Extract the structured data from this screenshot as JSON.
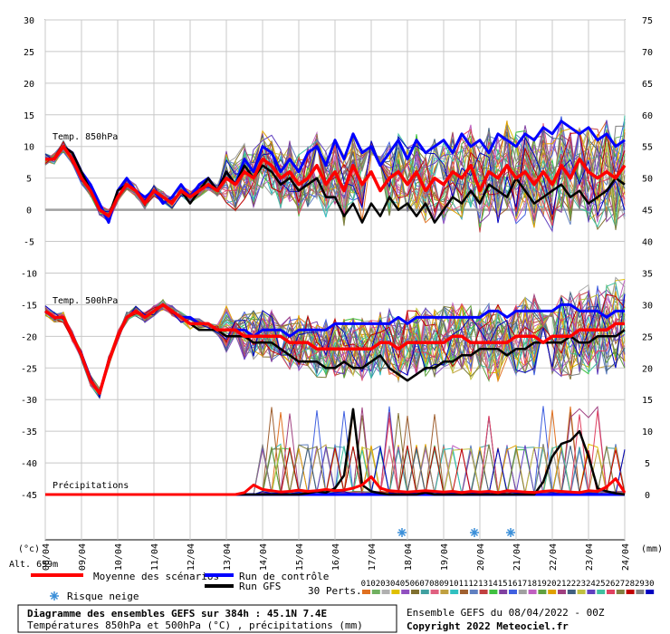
{
  "chart_data": {
    "type": "line",
    "ylim_left": [
      -45,
      30
    ],
    "ylim_right": [
      0,
      75
    ],
    "yticks_left": [
      "30",
      "25",
      "20",
      "15",
      "10",
      "5",
      "0",
      "-5",
      "-10",
      "-15",
      "-20",
      "-25",
      "-30",
      "-35",
      "-40",
      "-45"
    ],
    "yticks_right": [
      "75",
      "70",
      "65",
      "60",
      "55",
      "50",
      "45",
      "40",
      "35",
      "30",
      "25",
      "20",
      "15",
      "10",
      "5",
      "0"
    ],
    "x_ticks": [
      "09/04",
      "10/04",
      "11/04",
      "12/04",
      "13/04",
      "14/04",
      "15/04",
      "16/04",
      "17/04",
      "18/04",
      "19/04",
      "20/04",
      "21/04",
      "22/04",
      "23/04",
      "24/04"
    ],
    "x_first_tick": "08/04",
    "unit_left": "(°c)",
    "unit_right": "(mm)",
    "altitude": "Alt. 659m",
    "panel_labels": {
      "t850": "Temp. 850hPa",
      "t500": "Temp. 500hPa",
      "precip": "Précipitations"
    },
    "zero_line_t850": 0,
    "t850_mean": [
      8,
      8,
      10,
      8,
      5,
      3,
      0,
      -1,
      2,
      4,
      3,
      1,
      3,
      2,
      1,
      3,
      2,
      3,
      4,
      3,
      5,
      4,
      6,
      5,
      8,
      7,
      5,
      6,
      4,
      5,
      7,
      4,
      6,
      3,
      7,
      4,
      6,
      3,
      5,
      6,
      4,
      6,
      3,
      5,
      4,
      6,
      5,
      7,
      3,
      6,
      5,
      7,
      5,
      6,
      4,
      6,
      4,
      7,
      5,
      8,
      6,
      5,
      6,
      5,
      7
    ],
    "t850_control": [
      8,
      8,
      10,
      9,
      6,
      4,
      1,
      -2,
      3,
      5,
      3,
      2,
      3,
      1,
      2,
      4,
      2,
      4,
      5,
      3,
      6,
      4,
      8,
      6,
      10,
      9,
      6,
      8,
      6,
      9,
      10,
      7,
      11,
      8,
      12,
      9,
      10,
      7,
      9,
      11,
      8,
      11,
      9,
      10,
      11,
      9,
      12,
      10,
      11,
      9,
      12,
      11,
      10,
      12,
      11,
      13,
      12,
      14,
      13,
      12,
      13,
      11,
      12,
      10,
      11
    ],
    "t850_gfs": [
      8,
      8,
      10,
      9,
      6,
      3,
      0,
      -1,
      3,
      4,
      3,
      1,
      3,
      2,
      1,
      3,
      1,
      3,
      5,
      3,
      6,
      4,
      7,
      5,
      7,
      6,
      4,
      5,
      3,
      4,
      5,
      2,
      2,
      -1,
      1,
      -2,
      1,
      -1,
      2,
      0,
      1,
      -1,
      1,
      -2,
      0,
      2,
      1,
      3,
      1,
      4,
      3,
      2,
      5,
      3,
      1,
      2,
      3,
      4,
      2,
      3,
      1,
      2,
      3,
      5,
      4
    ],
    "t500_mean": [
      -16,
      -17,
      -17,
      -20,
      -23,
      -27,
      -29,
      -24,
      -20,
      -17,
      -16,
      -17,
      -16,
      -15,
      -16,
      -17,
      -18,
      -18,
      -18,
      -19,
      -19,
      -19,
      -20,
      -20,
      -20,
      -20,
      -20,
      -21,
      -21,
      -21,
      -22,
      -22,
      -22,
      -22,
      -22,
      -22,
      -22,
      -21,
      -21,
      -22,
      -21,
      -21,
      -21,
      -21,
      -21,
      -20,
      -20,
      -21,
      -21,
      -21,
      -21,
      -21,
      -20,
      -20,
      -20,
      -21,
      -20,
      -20,
      -20,
      -19,
      -19,
      -19,
      -19,
      -18,
      -18
    ],
    "t500_control": [
      -16,
      -17,
      -17,
      -20,
      -23,
      -27,
      -29,
      -24,
      -20,
      -17,
      -16,
      -17,
      -16,
      -15,
      -16,
      -17,
      -17,
      -18,
      -18,
      -19,
      -19,
      -19,
      -19,
      -20,
      -19,
      -19,
      -19,
      -20,
      -19,
      -19,
      -19,
      -19,
      -18,
      -18,
      -18,
      -18,
      -18,
      -18,
      -18,
      -17,
      -18,
      -17,
      -17,
      -17,
      -17,
      -17,
      -17,
      -17,
      -17,
      -16,
      -16,
      -17,
      -16,
      -16,
      -16,
      -16,
      -16,
      -15,
      -15,
      -16,
      -16,
      -16,
      -17,
      -16,
      -16
    ],
    "t500_gfs": [
      -16,
      -17,
      -17,
      -20,
      -23,
      -27,
      -29,
      -24,
      -20,
      -17,
      -16,
      -17,
      -16,
      -15,
      -16,
      -17,
      -18,
      -19,
      -19,
      -19,
      -20,
      -20,
      -20,
      -21,
      -21,
      -21,
      -22,
      -23,
      -24,
      -24,
      -24,
      -25,
      -25,
      -24,
      -25,
      -25,
      -24,
      -23,
      -25,
      -26,
      -27,
      -26,
      -25,
      -25,
      -24,
      -24,
      -23,
      -23,
      -22,
      -22,
      -22,
      -23,
      -22,
      -22,
      -21,
      -21,
      -21,
      -21,
      -20,
      -21,
      -21,
      -20,
      -20,
      -20,
      -19
    ],
    "precip_mean": [
      0,
      0,
      0,
      0,
      0,
      0,
      0,
      0,
      0,
      0,
      0,
      0,
      0,
      0,
      0,
      0,
      0,
      0,
      0,
      0,
      0,
      0,
      0.3,
      1.5,
      0.8,
      0.6,
      0.4,
      0.5,
      0.7,
      0.5,
      0.6,
      0.8,
      0.6,
      0.7,
      1.0,
      1.5,
      2.8,
      1.0,
      0.6,
      0.5,
      0.4,
      0.5,
      0.6,
      0.5,
      0.4,
      0.5,
      0.3,
      0.5,
      0.4,
      0.5,
      0.3,
      0.6,
      0.5,
      0.4,
      0.3,
      0.5,
      0.6,
      0.5,
      0.4,
      0.3,
      0.6,
      0.5,
      1.2,
      2.5,
      0.3
    ],
    "precip_control": [
      0,
      0,
      0,
      0,
      0,
      0,
      0,
      0,
      0,
      0,
      0,
      0,
      0,
      0,
      0,
      0,
      0,
      0,
      0,
      0,
      0,
      0,
      0,
      0,
      0,
      0,
      0,
      0,
      0,
      0,
      0,
      0,
      0,
      0,
      0,
      0,
      0,
      0,
      0,
      0,
      0,
      0,
      0,
      0,
      0,
      0,
      0,
      0,
      0,
      0,
      0,
      0,
      0,
      0,
      0,
      0,
      0,
      0,
      0,
      0,
      0,
      0,
      0,
      0,
      0
    ],
    "precip_gfs": [
      0,
      0,
      0,
      0,
      0,
      0,
      0,
      0,
      0,
      0,
      0,
      0,
      0,
      0,
      0,
      0,
      0,
      0,
      0,
      0,
      0,
      0,
      0,
      0,
      0,
      0,
      0,
      0,
      0,
      0.2,
      0.5,
      0.3,
      1.0,
      3.0,
      13.5,
      1.5,
      0.5,
      0.2,
      0,
      0,
      0,
      0,
      0.3,
      0,
      0,
      0,
      0,
      0,
      0,
      0,
      0,
      0,
      0,
      0,
      0,
      2,
      6,
      8,
      8.5,
      10,
      6,
      1,
      0.5,
      0.2,
      0
    ],
    "members": {
      "count": 30,
      "labels": [
        "01",
        "02",
        "03",
        "04",
        "05",
        "06",
        "07",
        "08",
        "09",
        "10",
        "11",
        "12",
        "13",
        "14",
        "15",
        "16",
        "17",
        "18",
        "19",
        "20",
        "21",
        "22",
        "23",
        "24",
        "25",
        "26",
        "27",
        "28",
        "29",
        "30"
      ],
      "colors": [
        "#e07020",
        "#70b060",
        "#b0b0b0",
        "#e0c000",
        "#9050c0",
        "#807030",
        "#40a0a0",
        "#e06080",
        "#c0a040",
        "#30c0c0",
        "#a06030",
        "#6080c0",
        "#c04040",
        "#40c040",
        "#8040a0",
        "#4060e0",
        "#a0a0a0",
        "#c060c0",
        "#60a040",
        "#e0a000",
        "#a04080",
        "#406080",
        "#c0c040",
        "#6040c0",
        "#40c0a0",
        "#e04060",
        "#808040",
        "#c00000",
        "#808080",
        "#0000c0"
      ]
    },
    "snow_markers_dates": [
      "18/04",
      "20/04",
      "21/04"
    ],
    "legend": {
      "mean": "Moyenne des scénarios",
      "control": "Run de contrôle",
      "gfs": "Run GFS",
      "snow": "Risque neige",
      "perts": "30 Perts."
    },
    "colors": {
      "mean": "#ff0000",
      "control": "#0000ff",
      "gfs": "#000000",
      "zero_line": "#a0a0a0"
    }
  },
  "footer": {
    "title": "Diagramme des ensembles GEFS sur 384h : 45.1N 7.4E",
    "subtitle": "Températures 850hPa et 500hPa (°C) , précipitations (mm)",
    "run": "Ensemble GEFS du 08/04/2022 - 00Z",
    "copyright": "Copyright 2022 Meteociel.fr"
  }
}
